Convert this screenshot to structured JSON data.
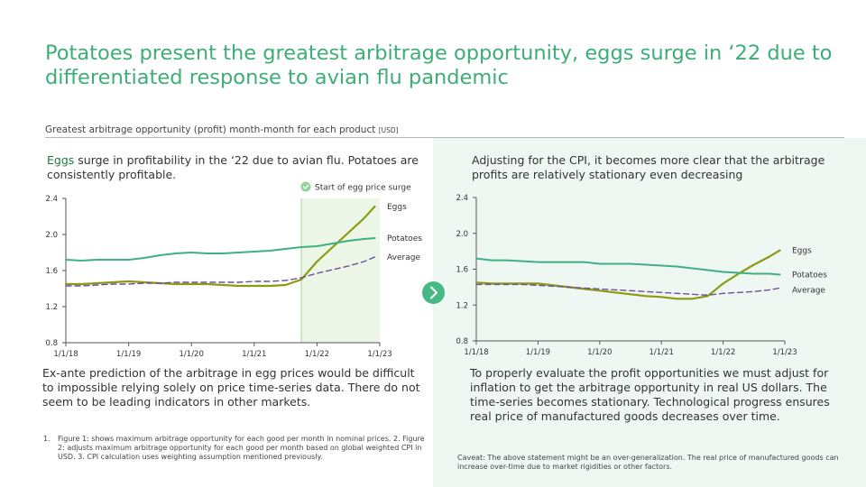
{
  "title": "Potatoes present the greatest arbitrage opportunity, eggs surge in ‘22 due to differentiated response to avian flu pandemic",
  "subtitle": "Greatest arbitrage opportunity (profit) month-month for each product",
  "subtitle_unit": "[USD]",
  "left_panel": {
    "top_text_highlight": "Eggs",
    "top_text_rest": " surge in profitability in the ‘22 due to avian flu. Potatoes are consistently profitable.",
    "bottom_text": "Ex-ante prediction of the arbitrage in egg prices would be difficult to impossible relying solely on price time-series data. There do not seem to be leading indicators in other markets."
  },
  "right_panel": {
    "top_text": "Adjusting for the CPI, it becomes more clear that the arbitrage profits are relatively stationary even decreasing",
    "bottom_text": "To properly evaluate the profit opportunities we must adjust for inflation to get the arbitrage opportunity in real US dollars. The time-series becomes stationary. Technological progress ensures real price of manufactured goods decreases over time.",
    "caveat": "Caveat: The above statement might be an over-generalization. The real price of manufactured goods can increase over-time due to market rigidities or other factors."
  },
  "footnote": {
    "number": "1.",
    "text": "Figure 1: shows maximum arbitrage opportunity for each good per month in nominal prices. 2. Figure 2: adjusts maximum arbitrage opportunity for each good per month based on global weighted CPI in USD. 3. CPI calculation uses weighting assumption mentioned previously."
  },
  "colors": {
    "accent": "#3dae78",
    "eggs": "#8a9a12",
    "potatoes": "#3fb083",
    "average": "#6a4f9c",
    "highlight_region": "#ecf6e6"
  },
  "icons": {
    "next": "chevron-right-icon",
    "marker": "check-circle-icon"
  },
  "chart_data": [
    {
      "type": "line",
      "xlabel": "",
      "ylabel": "",
      "x_ticks": [
        "1/1/18",
        "1/1/19",
        "1/1/20",
        "1/1/21",
        "1/1/22",
        "1/1/23"
      ],
      "xlim": [
        2018.0,
        2023.0
      ],
      "ylim": [
        0.8,
        2.4
      ],
      "y_ticks": [
        "0.8",
        "1.2",
        "1.6",
        "2.0",
        "2.4"
      ],
      "grid": false,
      "annotation": "Start of egg price surge",
      "highlight_start": 2021.75,
      "series": [
        {
          "name": "Eggs",
          "style": "solid-thick",
          "x": [
            2018.0,
            2018.25,
            2018.5,
            2018.75,
            2019.0,
            2019.25,
            2019.5,
            2019.75,
            2020.0,
            2020.25,
            2020.5,
            2020.75,
            2021.0,
            2021.25,
            2021.5,
            2021.75,
            2022.0,
            2022.25,
            2022.5,
            2022.75,
            2022.92
          ],
          "values": [
            1.45,
            1.45,
            1.46,
            1.47,
            1.48,
            1.47,
            1.46,
            1.45,
            1.45,
            1.45,
            1.44,
            1.43,
            1.43,
            1.43,
            1.44,
            1.5,
            1.7,
            1.86,
            2.02,
            2.18,
            2.31
          ]
        },
        {
          "name": "Potatoes",
          "style": "solid",
          "x": [
            2018.0,
            2018.25,
            2018.5,
            2018.75,
            2019.0,
            2019.25,
            2019.5,
            2019.75,
            2020.0,
            2020.25,
            2020.5,
            2020.75,
            2021.0,
            2021.25,
            2021.5,
            2021.75,
            2022.0,
            2022.25,
            2022.5,
            2022.75,
            2022.92
          ],
          "values": [
            1.72,
            1.71,
            1.72,
            1.72,
            1.72,
            1.74,
            1.77,
            1.79,
            1.8,
            1.79,
            1.79,
            1.8,
            1.81,
            1.82,
            1.84,
            1.86,
            1.87,
            1.9,
            1.93,
            1.95,
            1.96
          ]
        },
        {
          "name": "Average",
          "style": "dashed",
          "x": [
            2018.0,
            2018.25,
            2018.5,
            2018.75,
            2019.0,
            2019.25,
            2019.5,
            2019.75,
            2020.0,
            2020.25,
            2020.5,
            2020.75,
            2021.0,
            2021.25,
            2021.5,
            2021.75,
            2022.0,
            2022.25,
            2022.5,
            2022.75,
            2022.92
          ],
          "values": [
            1.43,
            1.43,
            1.44,
            1.45,
            1.45,
            1.46,
            1.46,
            1.47,
            1.47,
            1.47,
            1.47,
            1.47,
            1.48,
            1.48,
            1.49,
            1.52,
            1.57,
            1.61,
            1.65,
            1.7,
            1.75
          ]
        }
      ]
    },
    {
      "type": "line",
      "xlabel": "",
      "ylabel": "",
      "x_ticks": [
        "1/1/18",
        "1/1/19",
        "1/1/20",
        "1/1/21",
        "1/1/22",
        "1/1/23"
      ],
      "xlim": [
        2018.0,
        2023.0
      ],
      "ylim": [
        0.8,
        2.4
      ],
      "y_ticks": [
        "0.8",
        "1.2",
        "1.6",
        "2.0",
        "2.4"
      ],
      "grid": false,
      "series": [
        {
          "name": "Eggs",
          "style": "solid-thick",
          "x": [
            2018.0,
            2018.25,
            2018.5,
            2018.75,
            2019.0,
            2019.25,
            2019.5,
            2019.75,
            2020.0,
            2020.25,
            2020.5,
            2020.75,
            2021.0,
            2021.25,
            2021.5,
            2021.75,
            2022.0,
            2022.25,
            2022.5,
            2022.75,
            2022.92
          ],
          "values": [
            1.45,
            1.44,
            1.44,
            1.44,
            1.44,
            1.42,
            1.4,
            1.38,
            1.36,
            1.34,
            1.32,
            1.3,
            1.29,
            1.27,
            1.27,
            1.3,
            1.44,
            1.55,
            1.65,
            1.74,
            1.81
          ]
        },
        {
          "name": "Potatoes",
          "style": "solid",
          "x": [
            2018.0,
            2018.25,
            2018.5,
            2018.75,
            2019.0,
            2019.25,
            2019.5,
            2019.75,
            2020.0,
            2020.25,
            2020.5,
            2020.75,
            2021.0,
            2021.25,
            2021.5,
            2021.75,
            2022.0,
            2022.25,
            2022.5,
            2022.75,
            2022.92
          ],
          "values": [
            1.72,
            1.7,
            1.7,
            1.69,
            1.68,
            1.68,
            1.68,
            1.68,
            1.66,
            1.66,
            1.66,
            1.65,
            1.64,
            1.63,
            1.61,
            1.59,
            1.57,
            1.56,
            1.55,
            1.55,
            1.54
          ]
        },
        {
          "name": "Average",
          "style": "dashed",
          "x": [
            2018.0,
            2018.25,
            2018.5,
            2018.75,
            2019.0,
            2019.25,
            2019.5,
            2019.75,
            2020.0,
            2020.25,
            2020.5,
            2020.75,
            2021.0,
            2021.25,
            2021.5,
            2021.75,
            2022.0,
            2022.25,
            2022.5,
            2022.75,
            2022.92
          ],
          "values": [
            1.43,
            1.43,
            1.43,
            1.43,
            1.42,
            1.41,
            1.4,
            1.39,
            1.38,
            1.37,
            1.36,
            1.35,
            1.34,
            1.33,
            1.32,
            1.31,
            1.33,
            1.34,
            1.35,
            1.37,
            1.39
          ]
        }
      ]
    }
  ]
}
